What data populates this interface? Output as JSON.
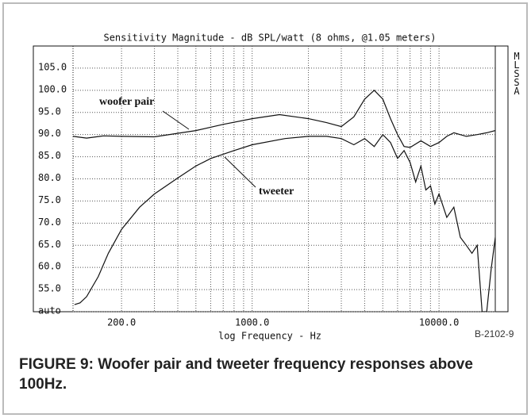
{
  "chart_data": {
    "type": "line",
    "title": "Sensitivity Magnitude - dB SPL/watt (8 ohms, @1.05 meters)",
    "xlabel": "log Frequency - Hz",
    "side_label": "MLSSA",
    "figure_id": "B-2102-9",
    "caption": "FIGURE 9: Woofer pair and tweeter frequency responses above 100Hz.",
    "xscale": "log",
    "grid": true,
    "xlim": [
      110,
      20000
    ],
    "ylim": [
      50,
      110
    ],
    "xticks": [
      {
        "value": 200,
        "label": "200.0"
      },
      {
        "value": 1000,
        "label": "1000.0"
      },
      {
        "value": 10000,
        "label": "10000.0"
      }
    ],
    "xminor_ticks": [
      300,
      400,
      500,
      600,
      700,
      800,
      900,
      2000,
      3000,
      4000,
      5000,
      6000,
      7000,
      8000,
      9000
    ],
    "yticks": [
      {
        "value": 50,
        "label": "auto"
      },
      {
        "value": 55,
        "label": "55.0"
      },
      {
        "value": 60,
        "label": "60.0"
      },
      {
        "value": 65,
        "label": "65.0"
      },
      {
        "value": 70,
        "label": "70.0"
      },
      {
        "value": 75,
        "label": "75.0"
      },
      {
        "value": 80,
        "label": "80.0"
      },
      {
        "value": 85,
        "label": "85.0"
      },
      {
        "value": 90,
        "label": "90.0"
      },
      {
        "value": 95,
        "label": "95.0"
      },
      {
        "value": 100,
        "label": "100.0"
      },
      {
        "value": 105,
        "label": "105.0"
      }
    ],
    "series": [
      {
        "name": "woofer pair",
        "color": "#111111",
        "x": [
          110,
          130,
          160,
          200,
          300,
          500,
          700,
          1000,
          1400,
          2000,
          2500,
          3000,
          3500,
          4000,
          4500,
          5000,
          5500,
          6000,
          6500,
          7000,
          8000,
          9000,
          10000,
          11000,
          12000,
          14000,
          16000,
          18000,
          20000
        ],
        "values": [
          89.6,
          89.2,
          89.7,
          89.6,
          89.5,
          90.9,
          92.3,
          93.6,
          94.5,
          93.6,
          92.7,
          91.8,
          94,
          98,
          100,
          98,
          93.6,
          90,
          87.3,
          87.1,
          88.6,
          87.3,
          88.2,
          89.6,
          90.4,
          89.6,
          90,
          90.4,
          90.9
        ]
      },
      {
        "name": "tweeter",
        "color": "#111111",
        "x": [
          112,
          120,
          130,
          150,
          170,
          200,
          250,
          300,
          400,
          500,
          600,
          800,
          1000,
          1500,
          2000,
          2500,
          3000,
          3500,
          4000,
          4500,
          5000,
          5500,
          6000,
          6500,
          7000,
          7500,
          8000,
          8500,
          9000,
          9500,
          10000,
          11000,
          12000,
          13000,
          14000,
          15000,
          16000,
          17000,
          18000,
          19000,
          20000
        ],
        "values": [
          51.6,
          52,
          53.4,
          57.9,
          63.2,
          68.6,
          73.6,
          76.6,
          80.2,
          82.9,
          84.6,
          86.4,
          87.7,
          89.1,
          89.6,
          89.6,
          89.1,
          87.7,
          89.1,
          87.3,
          90,
          88.2,
          84.6,
          86.4,
          83.7,
          79.3,
          82.9,
          77.5,
          78.4,
          74.3,
          76.6,
          71.3,
          73.6,
          66.8,
          65,
          63.2,
          65,
          50,
          50,
          59.6,
          66.8
        ]
      }
    ]
  }
}
